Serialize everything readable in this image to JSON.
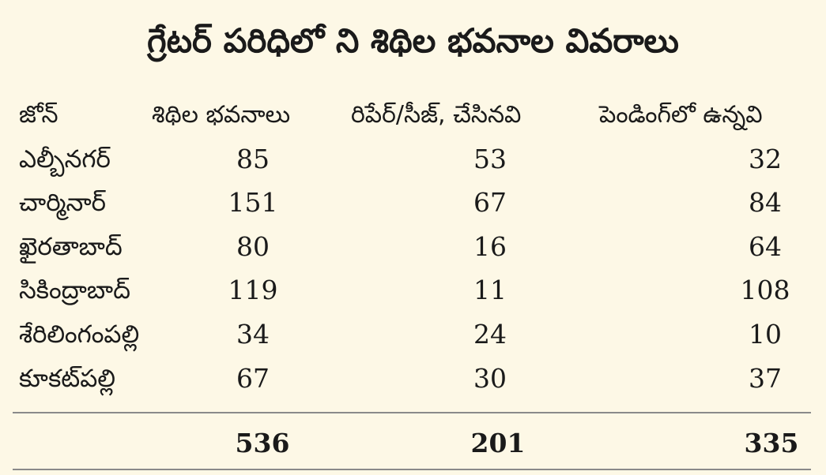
{
  "title": "గ్రేటర్ పరిధిలో ని శిథిల భవనాల వివరాలు",
  "columns": {
    "zone": "జోన్",
    "dilapidated": "శిథిల భవనాలు",
    "repaired": "రిపేర్/సీజ్, చేసినవి",
    "pending": "పెండింగ్‌లో ఉన్నవి"
  },
  "rows": [
    {
      "zone": "ఎల్బీనగర్",
      "dilapidated": "85",
      "repaired": "53",
      "pending": "32"
    },
    {
      "zone": "చార్మినార్",
      "dilapidated": "151",
      "repaired": "67",
      "pending": "84"
    },
    {
      "zone": "ఖైరతాబాద్",
      "dilapidated": "80",
      "repaired": "16",
      "pending": "64"
    },
    {
      "zone": "సికింద్రాబాద్",
      "dilapidated": "119",
      "repaired": "11",
      "pending": "108"
    },
    {
      "zone": "శేరిలింగంపల్లి",
      "dilapidated": "34",
      "repaired": "24",
      "pending": "10"
    },
    {
      "zone": "కూకట్‌పల్లి",
      "dilapidated": "67",
      "repaired": "30",
      "pending": "37"
    }
  ],
  "totals": {
    "dilapidated": "536",
    "repaired": "201",
    "pending": "335"
  },
  "colors": {
    "background": "#fdf8e6",
    "text": "#1a1a1a",
    "rule": "#8a8a8a"
  }
}
